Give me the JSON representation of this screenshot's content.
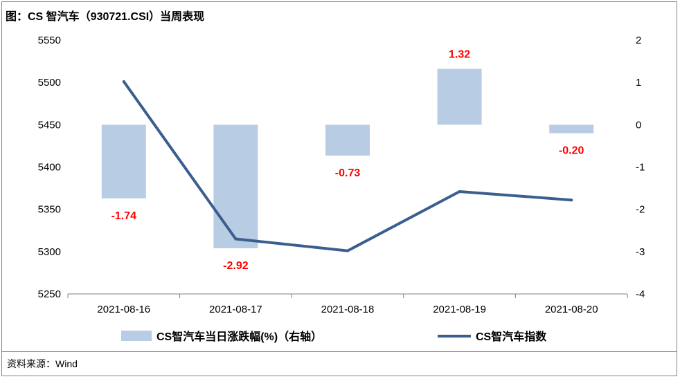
{
  "title": "图：CS 智汽车（930721.CSI）当周表现",
  "source": "资料来源：Wind",
  "colors": {
    "bar": "#b8cce4",
    "line": "#3a5f8f",
    "label": "#ff0000"
  },
  "chart_data": {
    "type": "bar+line",
    "categories": [
      "2021-08-16",
      "2021-08-17",
      "2021-08-18",
      "2021-08-19",
      "2021-08-20"
    ],
    "series": [
      {
        "name": "CS智汽车当日涨跌幅(%)（右轴）",
        "type": "bar",
        "axis": "right",
        "values": [
          -1.74,
          -2.92,
          -0.73,
          1.32,
          -0.2
        ],
        "labels": [
          "-1.74",
          "-2.92",
          "-0.73",
          "1.32",
          "-0.20"
        ]
      },
      {
        "name": "CS智汽车指数",
        "type": "line",
        "axis": "left",
        "values": [
          5501,
          5315,
          5301,
          5371,
          5361
        ]
      }
    ],
    "y_left": {
      "min": 5250,
      "max": 5550,
      "ticks": [
        "5550",
        "5500",
        "5450",
        "5400",
        "5350",
        "5300",
        "5250"
      ]
    },
    "y_right": {
      "min": -4,
      "max": 2,
      "ticks": [
        "2",
        "1",
        "0",
        "-1",
        "-2",
        "-3",
        "-4"
      ]
    },
    "legend": {
      "position": "bottom"
    }
  }
}
